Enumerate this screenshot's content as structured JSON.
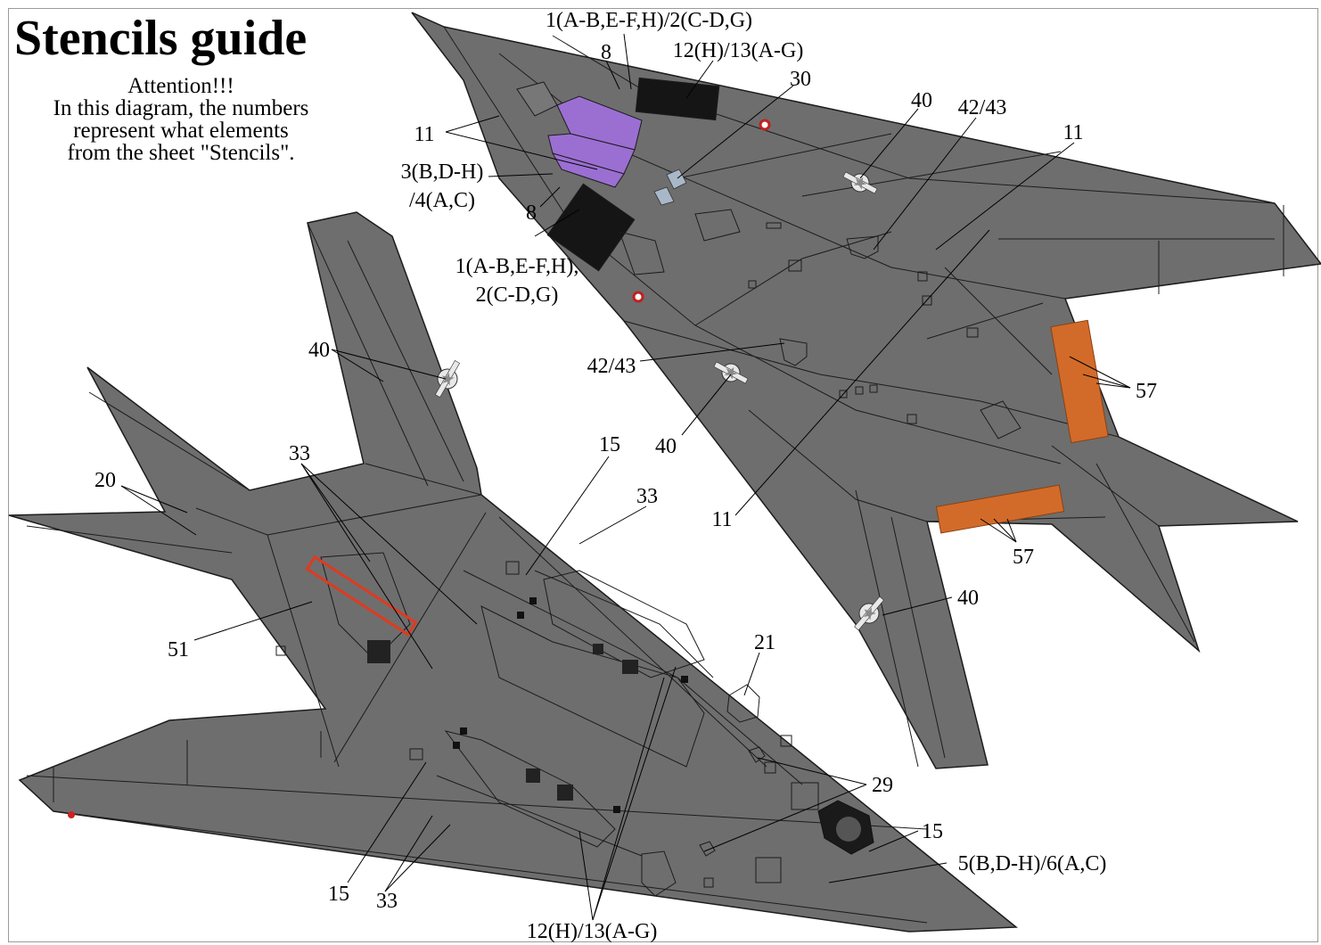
{
  "title": "Stencils guide",
  "notice": {
    "line1": "Attention!!!",
    "line2": "In this diagram, the numbers",
    "line3": "represent what elements",
    "line4": "from the sheet \"Stencils\"."
  },
  "colors": {
    "airframe": "#6e6e6e",
    "panel_line": "#1c1c1c",
    "cockpit_glass": "#9b6fd2",
    "walkway_orange": "#d26b2a",
    "warning_red": "#e03a1f",
    "label_text": "#000000"
  },
  "icons": [
    "star-bar-insignia-icon",
    "walkway-panel-icon",
    "stencil-marker-icon"
  ],
  "callouts": {
    "top": [
      "1(A-B,E-F,H)/2(C-D,G)",
      "8",
      "12(H)/13(A-G)",
      "30",
      "40",
      "42/43",
      "11",
      "11",
      "3(B,D-H)",
      "/4(A,C)",
      "8",
      "1(A-B,E-F,H),",
      "2(C-D,G)",
      "42/43",
      "40",
      "57",
      "11",
      "57",
      "40"
    ],
    "bottom": [
      "40",
      "33",
      "20",
      "15",
      "33",
      "51",
      "21",
      "29",
      "15",
      "5(B,D-H)/6(A,C)",
      "15",
      "33",
      "12(H)/13(A-G)"
    ]
  }
}
